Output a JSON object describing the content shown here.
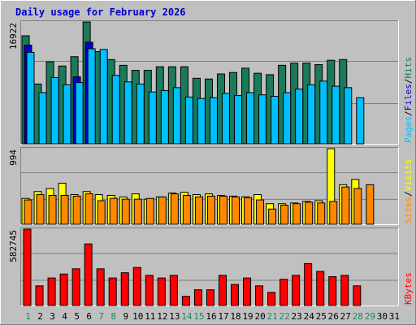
{
  "chart_data": [
    {
      "type": "bar",
      "title": "Daily usage for February 2026",
      "max_label": "16922",
      "ylim": [
        0,
        16922
      ],
      "grid": true,
      "categories": [
        "1",
        "2",
        "3",
        "4",
        "5",
        "6",
        "7",
        "8",
        "9",
        "10",
        "11",
        "12",
        "13",
        "14",
        "15",
        "16",
        "17",
        "18",
        "19",
        "20",
        "21",
        "22",
        "23",
        "24",
        "25",
        "26",
        "27",
        "28",
        "29",
        "30",
        "31"
      ],
      "legend": [
        {
          "label": "Hits",
          "color": "#1a7a5a"
        },
        {
          "label": "Files",
          "color": "#0000cc"
        },
        {
          "label": "Pages",
          "color": "#00bfff"
        }
      ],
      "legend_sep": "/",
      "series": [
        {
          "name": "Hits",
          "color": "#1a7a5a",
          "values": [
            15000,
            8300,
            11400,
            10800,
            12100,
            16922,
            12800,
            11700,
            10900,
            10200,
            10200,
            10700,
            10700,
            10700,
            9100,
            9000,
            9700,
            9900,
            10500,
            9800,
            9600,
            10900,
            11200,
            11200,
            11000,
            11600,
            11700,
            null,
            null,
            null,
            null
          ]
        },
        {
          "name": "Files",
          "color": "#0000cc",
          "values": [
            13700,
            null,
            null,
            null,
            9300,
            14100,
            null,
            null,
            null,
            null,
            null,
            null,
            null,
            null,
            null,
            null,
            null,
            null,
            null,
            null,
            null,
            null,
            null,
            null,
            null,
            null,
            null,
            null,
            null,
            null,
            null
          ]
        },
        {
          "name": "Pages",
          "color": "#00bfff",
          "values": [
            12700,
            7100,
            9200,
            8200,
            8500,
            13200,
            13100,
            9500,
            8600,
            8300,
            7200,
            7400,
            7800,
            6500,
            6300,
            6400,
            7000,
            6700,
            7100,
            6800,
            6600,
            7100,
            7600,
            8200,
            8700,
            8000,
            7800,
            6400,
            null,
            null,
            null
          ]
        }
      ]
    },
    {
      "type": "bar",
      "max_label": "994",
      "ylim": [
        0,
        994
      ],
      "grid": true,
      "legend": [
        {
          "label": "Visits",
          "color": "#ffff00"
        },
        {
          "label": "Sites",
          "color": "#ff8800"
        }
      ],
      "legend_sep": "/",
      "series": [
        {
          "name": "Visits",
          "color": "#ffff00",
          "values": [
            340,
            430,
            470,
            540,
            390,
            430,
            390,
            380,
            360,
            400,
            330,
            360,
            410,
            420,
            390,
            400,
            380,
            370,
            360,
            390,
            270,
            270,
            280,
            300,
            310,
            994,
            520,
            590,
            null,
            null,
            null
          ]
        },
        {
          "name": "Sites",
          "color": "#ff8800",
          "values": [
            320,
            390,
            380,
            380,
            370,
            400,
            310,
            340,
            330,
            330,
            340,
            360,
            400,
            380,
            360,
            370,
            370,
            360,
            350,
            320,
            200,
            250,
            270,
            290,
            280,
            300,
            490,
            470,
            520,
            null,
            null
          ]
        }
      ]
    },
    {
      "type": "bar",
      "max_label": "582745",
      "ylim": [
        0,
        582745
      ],
      "grid": true,
      "legend": [
        {
          "label": "KBytes",
          "color": "#ff0000"
        }
      ],
      "series": [
        {
          "name": "KBytes",
          "color": "#ff0000",
          "values": [
            582745,
            150000,
            210000,
            240000,
            280000,
            470000,
            280000,
            210000,
            250000,
            290000,
            230000,
            210000,
            230000,
            70000,
            120000,
            120000,
            230000,
            160000,
            210000,
            150000,
            100000,
            200000,
            230000,
            320000,
            260000,
            220000,
            230000,
            150000,
            null,
            null,
            null
          ]
        }
      ]
    }
  ],
  "x_axis": {
    "labels": [
      "1",
      "2",
      "3",
      "4",
      "5",
      "6",
      "7",
      "8",
      "9",
      "10",
      "11",
      "12",
      "13",
      "14",
      "15",
      "16",
      "17",
      "18",
      "19",
      "20",
      "21",
      "22",
      "23",
      "24",
      "25",
      "26",
      "27",
      "28",
      "29",
      "30",
      "31"
    ],
    "weekend_color": "#1a8a5a",
    "weekday_color": "#000000",
    "weekend_days": [
      1,
      7,
      8,
      14,
      15,
      21,
      22,
      28,
      29
    ]
  }
}
